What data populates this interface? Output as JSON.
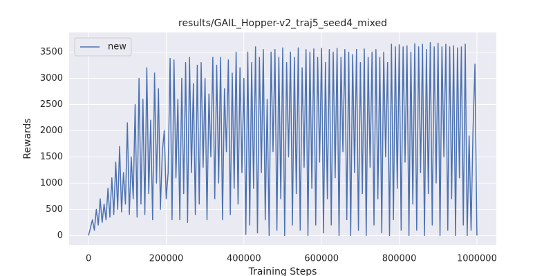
{
  "chart_data": {
    "type": "line",
    "title": "results/GAIL_Hopper-v2_traj5_seed4_mixed",
    "x_label": "Training Steps",
    "y_label": "Rewards",
    "x": [
      0,
      5000,
      10000,
      15000,
      20000,
      25000,
      30000,
      35000,
      40000,
      45000,
      50000,
      55000,
      60000,
      65000,
      70000,
      75000,
      80000,
      85000,
      90000,
      95000,
      100000,
      105000,
      110000,
      115000,
      120000,
      125000,
      130000,
      135000,
      140000,
      145000,
      150000,
      155000,
      160000,
      165000,
      170000,
      175000,
      180000,
      185000,
      190000,
      195000,
      200000,
      205000,
      210000,
      215000,
      220000,
      225000,
      230000,
      235000,
      240000,
      245000,
      250000,
      255000,
      260000,
      265000,
      270000,
      275000,
      280000,
      285000,
      290000,
      295000,
      300000,
      305000,
      310000,
      315000,
      320000,
      325000,
      330000,
      335000,
      340000,
      345000,
      350000,
      355000,
      360000,
      365000,
      370000,
      375000,
      380000,
      385000,
      390000,
      395000,
      400000,
      405000,
      410000,
      415000,
      420000,
      425000,
      430000,
      435000,
      440000,
      445000,
      450000,
      455000,
      460000,
      465000,
      470000,
      475000,
      480000,
      485000,
      490000,
      495000,
      500000,
      505000,
      510000,
      515000,
      520000,
      525000,
      530000,
      535000,
      540000,
      545000,
      550000,
      555000,
      560000,
      565000,
      570000,
      575000,
      580000,
      585000,
      590000,
      595000,
      600000,
      605000,
      610000,
      615000,
      620000,
      625000,
      630000,
      635000,
      640000,
      645000,
      650000,
      655000,
      660000,
      665000,
      670000,
      675000,
      680000,
      685000,
      690000,
      695000,
      700000,
      705000,
      710000,
      715000,
      720000,
      725000,
      730000,
      735000,
      740000,
      745000,
      750000,
      755000,
      760000,
      765000,
      770000,
      775000,
      780000,
      785000,
      790000,
      795000,
      800000,
      805000,
      810000,
      815000,
      820000,
      825000,
      830000,
      835000,
      840000,
      845000,
      850000,
      855000,
      860000,
      865000,
      870000,
      875000,
      880000,
      885000,
      890000,
      895000,
      900000,
      905000,
      910000,
      915000,
      920000,
      925000,
      930000,
      935000,
      940000,
      945000,
      950000,
      955000,
      960000,
      965000,
      970000,
      975000,
      980000,
      985000,
      990000,
      995000,
      1000000
    ],
    "series": [
      {
        "name": "new",
        "color": "#4c72b0",
        "values": [
          0,
          150,
          300,
          100,
          500,
          200,
          700,
          250,
          600,
          300,
          900,
          350,
          1100,
          400,
          1400,
          500,
          1700,
          450,
          1200,
          600,
          2150,
          400,
          1500,
          700,
          2500,
          350,
          3000,
          600,
          2600,
          400,
          3200,
          800,
          2200,
          300,
          3100,
          1000,
          2800,
          500,
          1600,
          2000,
          700,
          1200,
          3380,
          300,
          3350,
          1100,
          2600,
          300,
          3000,
          800,
          3300,
          250,
          3400,
          1200,
          2900,
          400,
          3250,
          600,
          3300,
          1300,
          3000,
          300,
          2700,
          1500,
          3400,
          700,
          3250,
          1000,
          3400,
          300,
          2800,
          1600,
          3350,
          400,
          3100,
          900,
          3500,
          600,
          3200,
          1200,
          3000,
          20,
          3500,
          200,
          3300,
          900,
          3600,
          50,
          3400,
          1200,
          3550,
          300,
          2600,
          0,
          3500,
          1600,
          3550,
          100,
          3400,
          700,
          3580,
          0,
          3300,
          1500,
          3500,
          200,
          3400,
          800,
          3580,
          100,
          3200,
          1300,
          3550,
          0,
          3500,
          900,
          3560,
          200,
          3400,
          1400,
          3570,
          50,
          3300,
          700,
          3550,
          200,
          3500,
          1100,
          3570,
          0,
          3400,
          1600,
          3550,
          300,
          3500,
          0,
          3450,
          1200,
          3550,
          100,
          3300,
          800,
          3560,
          0,
          3400,
          1300,
          3500,
          200,
          3550,
          700,
          3400,
          50,
          3500,
          1500,
          3300,
          0,
          3650,
          300,
          3600,
          900,
          3640,
          100,
          3600,
          1400,
          3620,
          0,
          3500,
          600,
          3660,
          100,
          3600,
          1200,
          3650,
          0,
          3550,
          800,
          3680,
          200,
          3600,
          1000,
          3670,
          0,
          3600,
          1500,
          3650,
          100,
          3600,
          700,
          3620,
          0,
          3580,
          1100,
          3600,
          200,
          3650,
          0,
          1900,
          100,
          2000,
          3270,
          0
        ]
      }
    ],
    "xlim": [
      -50000,
      1050000
    ],
    "ylim": [
      -180,
      3875
    ],
    "xticks": [
      0,
      200000,
      400000,
      600000,
      800000,
      1000000
    ],
    "yticks": [
      0,
      500,
      1000,
      1500,
      2000,
      2500,
      3000,
      3500
    ],
    "grid": true,
    "legend": "upper left"
  }
}
